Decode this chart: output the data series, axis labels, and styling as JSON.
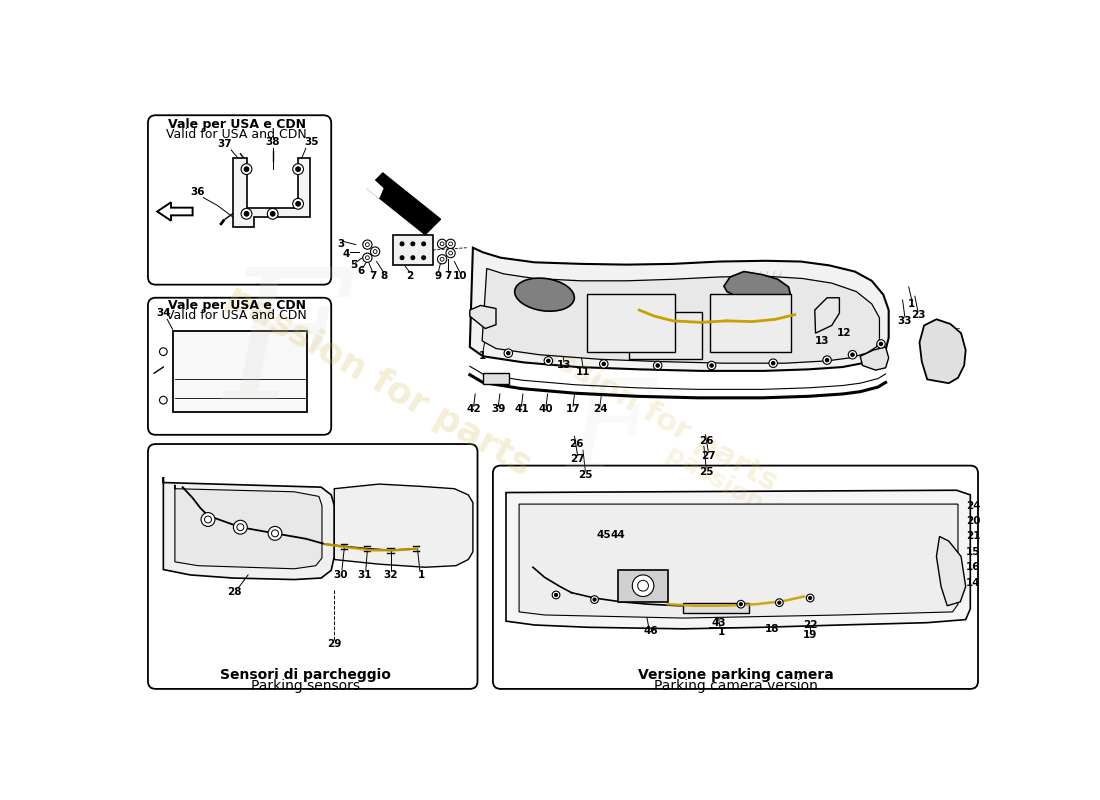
{
  "bg_color": "#ffffff",
  "line_color": "#000000",
  "watermark_text": "passion for parts",
  "watermark_color": "#d4b44a",
  "box1_label_it": "Vale per USA e CDN",
  "box1_label_en": "Valid for USA and CDN",
  "box2_label_it": "Vale per USA e CDN",
  "box2_label_en": "Valid for USA and CDN",
  "box3_label_it": "Sensori di parcheggio",
  "box3_label_en": "Parking sensors",
  "box4_label_it": "Versione parking camera",
  "box4_label_en": "Parking camera version"
}
